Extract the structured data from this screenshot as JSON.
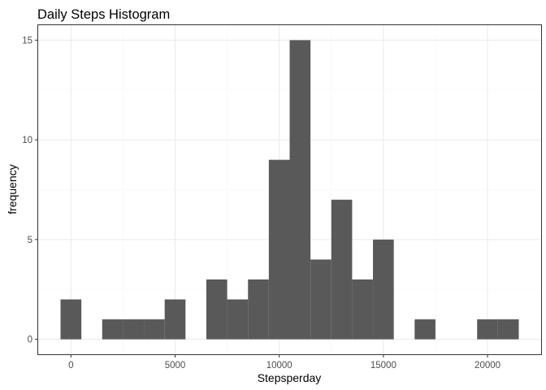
{
  "chart_data": {
    "type": "bar",
    "subtype": "histogram",
    "title": "Daily Steps Histogram",
    "xlabel": "Stepsperday",
    "ylabel": "frequency",
    "bin_width": 1000,
    "bins": [
      {
        "center": 0,
        "count": 2
      },
      {
        "center": 2000,
        "count": 1
      },
      {
        "center": 3000,
        "count": 1
      },
      {
        "center": 4000,
        "count": 1
      },
      {
        "center": 5000,
        "count": 2
      },
      {
        "center": 7000,
        "count": 3
      },
      {
        "center": 8000,
        "count": 2
      },
      {
        "center": 9000,
        "count": 3
      },
      {
        "center": 10000,
        "count": 9
      },
      {
        "center": 11000,
        "count": 15
      },
      {
        "center": 12000,
        "count": 4
      },
      {
        "center": 13000,
        "count": 7
      },
      {
        "center": 14000,
        "count": 3
      },
      {
        "center": 15000,
        "count": 5
      },
      {
        "center": 17000,
        "count": 1
      },
      {
        "center": 20000,
        "count": 1
      },
      {
        "center": 21000,
        "count": 1
      }
    ],
    "xlim": [
      -1573,
      22573
    ],
    "ylim": [
      -0.75,
      15.75
    ],
    "x_ticks": [
      0,
      5000,
      10000,
      15000,
      20000
    ],
    "y_ticks": [
      0,
      5,
      10,
      15
    ],
    "x_tick_labels": [
      "0",
      "5000",
      "10000",
      "15000",
      "20000"
    ],
    "y_tick_labels": [
      "0",
      "5",
      "10",
      "15"
    ],
    "grid": true,
    "bar_color": "#595959",
    "theme": "bw"
  }
}
